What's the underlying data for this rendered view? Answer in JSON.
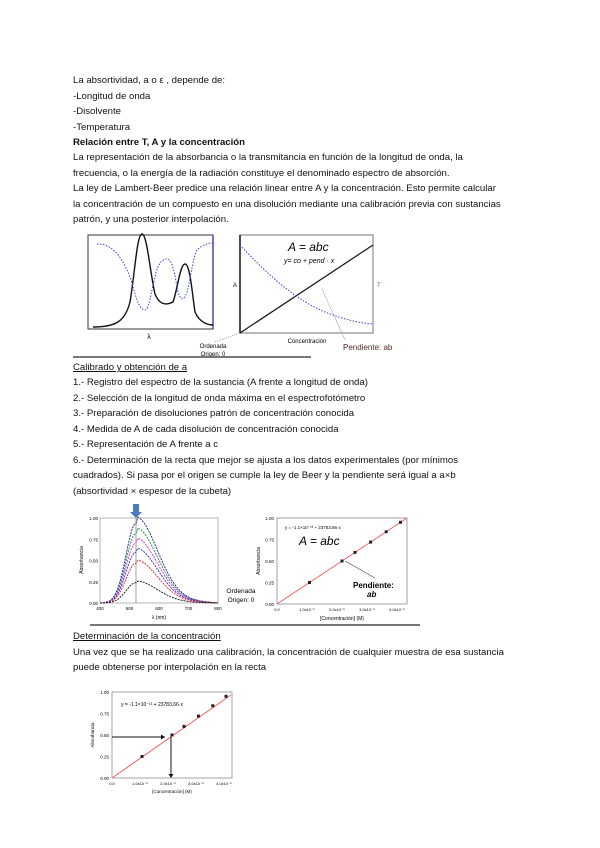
{
  "intro": {
    "lines": [
      "La absortividad, a o ε , depende de:",
      "-Longitud de onda",
      "-Disolvente",
      "-Temperatura"
    ]
  },
  "section1": {
    "heading": "Relación entre T, A y la concentración",
    "lines": [
      "La representación de la absorbancia o la transmitancia en función de la longitud de onda, la",
      "frecuencia, o la energía de la radiación constituye el denominado espectro de absorción.",
      "La ley de Lambert-Beer predice una relación linear entre A y la concentración. Esto permite calcular",
      "la concentración de un compuesto en una disolución mediante una calibración previa con sustancias",
      "patrón, y una posterior interpolación."
    ],
    "figure": {
      "spectrum_xlabel": "λ",
      "spectrum_ylabel": "A",
      "equation": "A = abc",
      "equation2": "y= co + pend · x",
      "ylabel_left": "A",
      "ylabel_right": "T",
      "xlabel": "Concentración",
      "origin_label_1": "Ordenada",
      "origin_label_2": "Origen: 0",
      "slope_label": "Pendiente: ab"
    }
  },
  "section2": {
    "heading": "Calibrado y obtención de a",
    "lines": [
      "1.- Registro del espectro de la sustancia (A frente a longitud de onda)",
      "2.- Selección de la longitud de onda máxima en el espectrofotómetro",
      "3.- Preparación de disoluciones patrón de concentración conocida",
      "4.- Medida de A de cada disolución de concentración conocida",
      "5.- Representación de A frente a c",
      "6.- Determinación de la recta que mejor se ajusta a los datos experimentales (por mínimos",
      "cuadrados). Si pasa por el origen se cumple la ley de Beer y la pendiente será igual a a×b",
      "(absortividad × espesor de la cubeta)"
    ],
    "figure": {
      "spectra_yticks": [
        "1.00",
        "0.75",
        "0.50",
        "0.25",
        "0.00"
      ],
      "spectra_xticks": [
        "400",
        "500",
        "600",
        "700",
        "800"
      ],
      "spectra_xlabel": "λ (nm)",
      "spectra_ylabel": "Absorbancia",
      "spectra_colors": [
        "#1a1a8c",
        "#1a8c3a",
        "#e020e0",
        "#2030e0",
        "#e02020",
        "#111111"
      ],
      "origin_label_1": "Ordenada",
      "origin_label_2": "Origen: 0",
      "cal_equation": "y = -1.1×10⁻¹³ + 23783.66·x",
      "cal_law": "A = abc",
      "cal_yticks": [
        "1.00",
        "0.75",
        "0.50",
        "0.25",
        "0.00"
      ],
      "cal_xticks": [
        "0.0",
        "1.0x10⁻⁵",
        "2.0x10⁻⁵",
        "3.0x10⁻⁵",
        "4.0x10⁻⁵"
      ],
      "cal_ylabel": "Absorbancia",
      "cal_xlabel": "[Concentración] (M)",
      "slope_label_1": "Pendiente:",
      "slope_label_2": "ab",
      "line_color": "#f06060"
    }
  },
  "section3": {
    "heading": "Determinación de la concentración",
    "lines": [
      "Una vez que se ha realizado una calibración, la concentración de cualquier muestra de esa sustancia",
      "puede obtenerse por interpolación en la recta"
    ],
    "figure": {
      "equation": "y = -1.1×10⁻¹³ + 23783.66·x",
      "yticks": [
        "1.00",
        "0.75",
        "0.50",
        "0.25",
        "0.00"
      ],
      "xticks": [
        "0.0",
        "1.0x10⁻⁵",
        "2.0x10⁻⁵",
        "3.0x10⁻⁵",
        "4.0x10⁻⁵"
      ],
      "ylabel": "Absorbancia",
      "xlabel": "[Concentración] (M)"
    }
  }
}
